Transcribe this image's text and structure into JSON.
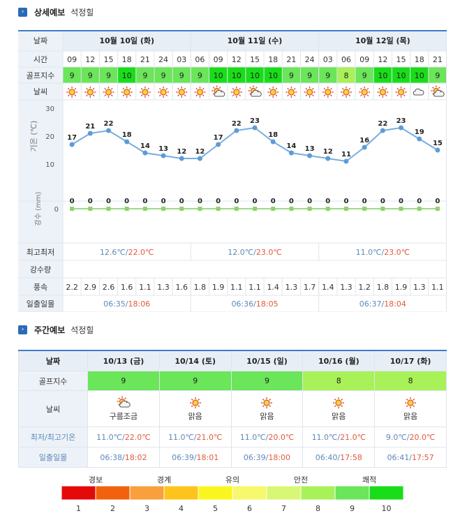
{
  "detail_title": {
    "main": "상세예보",
    "location": "석정힐"
  },
  "weekly_title": {
    "main": "주간예보",
    "location": "석정힐"
  },
  "row_labels": {
    "date": "날짜",
    "time": "시간",
    "golf": "골프지수",
    "weather": "날씨",
    "minmax": "최고최저",
    "rain": "강수량",
    "wind": "풍속",
    "sun": "일출일몰",
    "temp_axis": "기온 (℃)",
    "rain_axis": "강수 (mm)"
  },
  "days": [
    {
      "label": "10월 10일 (화)",
      "min": "12.6℃",
      "max": "22.0℃",
      "sunrise": "06:35",
      "sunset": "18:06"
    },
    {
      "label": "10월 11일 (수)",
      "min": "12.0℃",
      "max": "23.0℃",
      "sunrise": "06:36",
      "sunset": "18:05"
    },
    {
      "label": "10월 12일 (목)",
      "min": "11.0℃",
      "max": "23.0℃",
      "sunrise": "06:37",
      "sunset": "18:04"
    }
  ],
  "hours": [
    "09",
    "12",
    "15",
    "18",
    "21",
    "24",
    "03",
    "06",
    "09",
    "12",
    "15",
    "18",
    "21",
    "24",
    "03",
    "06",
    "09",
    "12",
    "15",
    "18",
    "21"
  ],
  "golf": [
    9,
    9,
    9,
    10,
    9,
    9,
    9,
    9,
    10,
    10,
    10,
    10,
    9,
    9,
    9,
    8,
    9,
    10,
    10,
    10,
    9
  ],
  "weather_icons": [
    "sun-icon",
    "sun-icon",
    "sun-icon",
    "sun-icon",
    "sun-icon",
    "sun-icon",
    "sun-icon",
    "sun-icon",
    "cloud-sun-icon",
    "sun-icon",
    "cloud-sun-icon",
    "sun-icon",
    "sun-icon",
    "sun-icon",
    "sun-icon",
    "sun-icon",
    "sun-icon",
    "sun-icon",
    "sun-icon",
    "cloud-icon",
    "cloud-sun-icon"
  ],
  "wind": [
    "2.2",
    "2.9",
    "2.6",
    "1.6",
    "1.1",
    "1.3",
    "1.6",
    "1.8",
    "1.9",
    "1.1",
    "1.1",
    "1.4",
    "1.3",
    "1.7",
    "1.4",
    "1.3",
    "1.2",
    "1.8",
    "1.9",
    "1.3",
    "1.1"
  ],
  "chart_data": [
    {
      "type": "line",
      "ylabel": "기온 (℃)",
      "ylim": [
        10,
        30
      ],
      "yticks": [
        10,
        20,
        30
      ],
      "x": [
        "09",
        "12",
        "15",
        "18",
        "21",
        "24",
        "03",
        "06",
        "09",
        "12",
        "15",
        "18",
        "21",
        "24",
        "03",
        "06",
        "09",
        "12",
        "15",
        "18",
        "21"
      ],
      "values": [
        17,
        21,
        22,
        18,
        14,
        13,
        12,
        12,
        17,
        22,
        23,
        18,
        14,
        13,
        12,
        11,
        16,
        22,
        23,
        19,
        15
      ],
      "grid": false
    },
    {
      "type": "line",
      "ylabel": "강수 (mm)",
      "yticks": [
        0
      ],
      "x": [
        "09",
        "12",
        "15",
        "18",
        "21",
        "24",
        "03",
        "06",
        "09",
        "12",
        "15",
        "18",
        "21",
        "24",
        "03",
        "06",
        "09",
        "12",
        "15",
        "18",
        "21"
      ],
      "values": [
        0,
        0,
        0,
        0,
        0,
        0,
        0,
        0,
        0,
        0,
        0,
        0,
        0,
        0,
        0,
        0,
        0,
        0,
        0,
        0,
        0
      ],
      "grid": false
    }
  ],
  "weekly": {
    "labels": {
      "date": "날짜",
      "golf": "골프지수",
      "weather": "날씨",
      "temp": "최저/최고기온",
      "sun": "일출일몰"
    },
    "days": [
      {
        "date": "10/13 (금)",
        "golf": "9",
        "icon": "cloud-sun-icon",
        "desc": "구름조금",
        "min": "11.0℃",
        "max": "22.0℃",
        "sunrise": "06:38",
        "sunset": "18:02"
      },
      {
        "date": "10/14 (토)",
        "golf": "9",
        "icon": "sun-icon",
        "desc": "맑음",
        "min": "11.0℃",
        "max": "21.0℃",
        "sunrise": "06:39",
        "sunset": "18:01"
      },
      {
        "date": "10/15 (일)",
        "golf": "9",
        "icon": "sun-icon",
        "desc": "맑음",
        "min": "11.0℃",
        "max": "20.0℃",
        "sunrise": "06:39",
        "sunset": "18:00"
      },
      {
        "date": "10/16 (월)",
        "golf": "8",
        "icon": "sun-icon",
        "desc": "맑음",
        "min": "11.0℃",
        "max": "21.0℃",
        "sunrise": "06:40",
        "sunset": "17:58"
      },
      {
        "date": "10/17 (화)",
        "golf": "8",
        "icon": "sun-icon",
        "desc": "맑음",
        "min": "9.0℃",
        "max": "20.0℃",
        "sunrise": "06:41",
        "sunset": "17:57"
      }
    ]
  },
  "scale": {
    "labels": [
      "경보",
      "경계",
      "유의",
      "안전",
      "쾌적"
    ],
    "numbers": [
      "1",
      "2",
      "3",
      "4",
      "5",
      "6",
      "7",
      "8",
      "9",
      "10"
    ],
    "colors": [
      "#e50a0a",
      "#f2620e",
      "#f9a03c",
      "#fdc51b",
      "#fbf51f",
      "#f7f86c",
      "#d8f775",
      "#a8f158",
      "#6be55a",
      "#18dd18"
    ]
  },
  "golf_colors": {
    "8": "#a8f158",
    "9": "#6be55a",
    "10": "#18dd18"
  }
}
